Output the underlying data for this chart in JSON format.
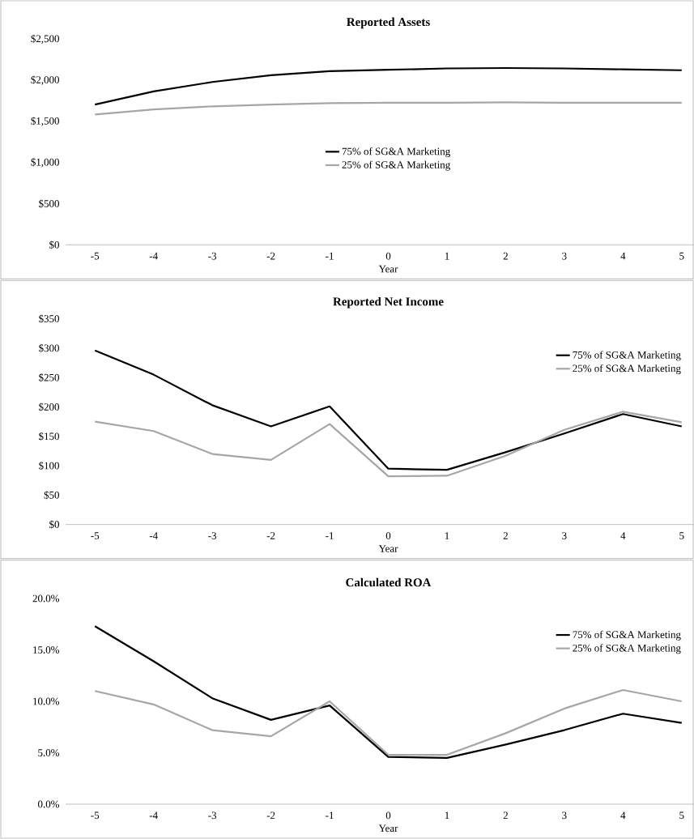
{
  "chart_data": [
    {
      "type": "line",
      "title": "Reported Assets",
      "xlabel": "Year",
      "categories": [
        "-5",
        "-4",
        "-3",
        "-2",
        "-1",
        "0",
        "1",
        "2",
        "3",
        "4",
        "5"
      ],
      "series": [
        {
          "name": "75% of SG&A Marketing",
          "color": "#000000",
          "values": [
            1705,
            1864,
            1979,
            2061,
            2111,
            2127,
            2144,
            2149,
            2144,
            2133,
            2122
          ]
        },
        {
          "name": "25% of SG&A Marketing",
          "color": "#a6a6a6",
          "values": [
            1584,
            1645,
            1683,
            1705,
            1721,
            1727,
            1727,
            1732,
            1727,
            1727,
            1727
          ]
        }
      ],
      "ylim": [
        0,
        2500
      ],
      "yticks": [
        {
          "value": 0,
          "label": "$0"
        },
        {
          "value": 500,
          "label": "$500"
        },
        {
          "value": 1000,
          "label": "$1,000"
        },
        {
          "value": 1500,
          "label": "$1,500"
        },
        {
          "value": 2000,
          "label": "$2,000"
        },
        {
          "value": 2500,
          "label": "$2,500"
        }
      ],
      "grid": false,
      "legend": "center",
      "marker": "none",
      "line_style": "solid"
    },
    {
      "type": "line",
      "title": "Reported Net Income",
      "xlabel": "Year",
      "categories": [
        "-5",
        "-4",
        "-3",
        "-2",
        "-1",
        "0",
        "1",
        "2",
        "3",
        "4",
        "5"
      ],
      "series": [
        {
          "name": "75% of SG&A Marketing",
          "color": "#000000",
          "values": [
            296,
            255,
            203,
            167,
            201,
            95,
            93,
            123,
            155,
            188,
            167
          ]
        },
        {
          "name": "25% of SG&A Marketing",
          "color": "#a6a6a6",
          "values": [
            175,
            159,
            120,
            110,
            171,
            82,
            83,
            117,
            161,
            192,
            174
          ]
        }
      ],
      "ylim": [
        0,
        350
      ],
      "yticks": [
        {
          "value": 0,
          "label": "$0"
        },
        {
          "value": 50,
          "label": "$50"
        },
        {
          "value": 100,
          "label": "$100"
        },
        {
          "value": 150,
          "label": "$150"
        },
        {
          "value": 200,
          "label": "$200"
        },
        {
          "value": 250,
          "label": "$250"
        },
        {
          "value": 300,
          "label": "$300"
        },
        {
          "value": 350,
          "label": "$350"
        }
      ],
      "grid": false,
      "legend": "top right",
      "marker": "none",
      "line_style": "solid"
    },
    {
      "type": "line",
      "title": "Calculated ROA",
      "xlabel": "Year",
      "categories": [
        "-5",
        "-4",
        "-3",
        "-2",
        "-1",
        "0",
        "1",
        "2",
        "3",
        "4",
        "5"
      ],
      "series": [
        {
          "name": "75% of SG&A Marketing",
          "color": "#000000",
          "values": [
            17.3,
            13.9,
            10.3,
            8.2,
            9.6,
            4.6,
            4.5,
            5.8,
            7.2,
            8.8,
            7.9
          ]
        },
        {
          "name": "25% of SG&A Marketing",
          "color": "#a6a6a6",
          "values": [
            11.0,
            9.7,
            7.2,
            6.6,
            10.0,
            4.8,
            4.8,
            6.9,
            9.3,
            11.1,
            10.0
          ]
        }
      ],
      "ylim": [
        0,
        20
      ],
      "yticks": [
        {
          "value": 0,
          "label": "0.0%"
        },
        {
          "value": 5,
          "label": "5.0%"
        },
        {
          "value": 10,
          "label": "10.0%"
        },
        {
          "value": 15,
          "label": "15.0%"
        },
        {
          "value": 20,
          "label": "20.0%"
        }
      ],
      "grid": false,
      "legend": "top right",
      "marker": "none",
      "line_style": "solid"
    }
  ]
}
